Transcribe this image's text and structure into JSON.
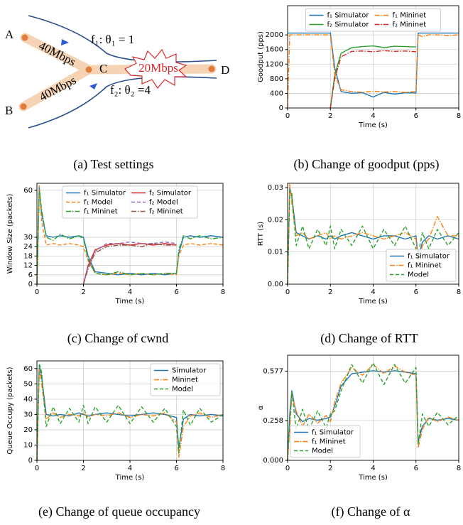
{
  "diagram": {
    "nodes": [
      "A",
      "B",
      "C",
      "D"
    ],
    "links": [
      "40Mbps",
      "40Mbps",
      "20Mbps"
    ],
    "flows": [
      "f₁: θ₁ = 1",
      "f₂: θ₂ =4"
    ]
  },
  "captions": [
    "(a) Test settings",
    "(b) Change of goodput (pps)",
    "(c) Change of cwnd",
    "(d) Change of RTT",
    "(e) Change of queue occupancy",
    "(f) Change of α"
  ],
  "chart_data": [
    {
      "type": "line",
      "xlabel": "Time (s)",
      "ylabel": "Goodput (pps)",
      "grid": true,
      "legend": "upper center",
      "legend_ncol": 2,
      "xlim": [
        0,
        8
      ],
      "xticks": [
        0,
        2,
        4,
        6,
        8
      ],
      "ylim": [
        0,
        2800
      ],
      "yticks": [
        0,
        400,
        800,
        1200,
        1600,
        2000
      ],
      "x": [
        0,
        0.1,
        0.2,
        0.4,
        0.7,
        1,
        1.4,
        1.8,
        2,
        2.2,
        2.5,
        3,
        3.5,
        4,
        4.5,
        5,
        5.5,
        6,
        6.1,
        6.3,
        6.6,
        7,
        7.5,
        8
      ],
      "series": [
        {
          "name": "f₁ Simulator",
          "color": "#1f77b4",
          "style": "solid",
          "values": [
            2050,
            2050,
            2050,
            2050,
            2050,
            2050,
            2050,
            2050,
            2050,
            1100,
            450,
            400,
            420,
            300,
            430,
            380,
            420,
            410,
            2050,
            2050,
            2050,
            2050,
            2050,
            2050
          ]
        },
        {
          "name": "f₂ Simulator",
          "color": "#2ca02c",
          "style": "solid",
          "values": [
            null,
            null,
            null,
            null,
            null,
            null,
            null,
            null,
            0,
            900,
            1500,
            1650,
            1680,
            1700,
            1650,
            1690,
            1680,
            1670,
            null,
            null,
            null,
            null,
            null,
            null
          ]
        },
        {
          "name": "f₁ Mininet",
          "color": "#ff7f0e",
          "style": "dashdot",
          "values": [
            0,
            2000,
            2000,
            2000,
            2000,
            2000,
            2000,
            2000,
            2000,
            900,
            500,
            450,
            430,
            460,
            440,
            450,
            430,
            450,
            2000,
            1950,
            2000,
            2000,
            1980,
            2000
          ]
        },
        {
          "name": "f₂ Mininet",
          "color": "#d62728",
          "style": "dashdot",
          "values": [
            null,
            null,
            null,
            null,
            null,
            null,
            null,
            null,
            0,
            800,
            1400,
            1550,
            1560,
            1540,
            1570,
            1550,
            1560,
            1540,
            null,
            null,
            null,
            null,
            null,
            null
          ]
        }
      ]
    },
    {
      "type": "line",
      "xlabel": "Time (s)",
      "ylabel": "Window Size (packets)",
      "grid": true,
      "legend": "upper center",
      "legend_ncol": 2,
      "xlim": [
        0,
        8
      ],
      "xticks": [
        0,
        2,
        4,
        6,
        8
      ],
      "ylim": [
        0,
        64.5
      ],
      "yticks": [
        0,
        6,
        12,
        18,
        24,
        30,
        60
      ],
      "x": [
        0,
        0.1,
        0.2,
        0.4,
        0.7,
        1,
        1.4,
        1.8,
        2,
        2.2,
        2.5,
        3,
        3.5,
        4,
        4.5,
        5,
        5.5,
        6,
        6.1,
        6.3,
        6.6,
        7,
        7.5,
        8
      ],
      "series": [
        {
          "name": "f₁ Simulator",
          "color": "#1f77b4",
          "style": "solid",
          "values": [
            0,
            62,
            45,
            31,
            30,
            31,
            30,
            31,
            30,
            18,
            8,
            7,
            6,
            7,
            6,
            7,
            6,
            7,
            20,
            30,
            31,
            30,
            31,
            30
          ]
        },
        {
          "name": "f₁ Model",
          "color": "#ff7f0e",
          "style": "dashed",
          "values": [
            0,
            63,
            40,
            25,
            26,
            25,
            26,
            25,
            24,
            15,
            7,
            6,
            7,
            6,
            7,
            6,
            7,
            6,
            18,
            25,
            26,
            25,
            26,
            25
          ]
        },
        {
          "name": "f₁ Mininet",
          "color": "#2ca02c",
          "style": "dashdot",
          "values": [
            0,
            60,
            48,
            30,
            28,
            32,
            29,
            31,
            29,
            16,
            7,
            6,
            8,
            6,
            7,
            6,
            7,
            7,
            22,
            31,
            29,
            31,
            29,
            30
          ]
        },
        {
          "name": "f₂ Simulator",
          "color": "#d62728",
          "style": "solid",
          "values": [
            null,
            null,
            null,
            null,
            null,
            null,
            null,
            null,
            0,
            12,
            22,
            25,
            26,
            25,
            26,
            25,
            26,
            25,
            null,
            null,
            null,
            null,
            null,
            null
          ]
        },
        {
          "name": "f₂ Model",
          "color": "#9467bd",
          "style": "dashed",
          "values": [
            null,
            null,
            null,
            null,
            null,
            null,
            null,
            null,
            0,
            11,
            21,
            26,
            26,
            27,
            26,
            26,
            27,
            26,
            null,
            null,
            null,
            null,
            null,
            null
          ]
        },
        {
          "name": "f₂ Mininet",
          "color": "#8c564b",
          "style": "dashdot",
          "values": [
            null,
            null,
            null,
            null,
            null,
            null,
            null,
            null,
            0,
            10,
            20,
            24,
            25,
            25,
            24,
            26,
            25,
            25,
            null,
            null,
            null,
            null,
            null,
            null
          ]
        }
      ]
    },
    {
      "type": "line",
      "xlabel": "Time (s)",
      "ylabel": "RTT (s)",
      "grid": true,
      "legend": "lower right",
      "legend_ncol": 1,
      "xlim": [
        0,
        8
      ],
      "xticks": [
        0,
        2,
        4,
        6,
        8
      ],
      "ylim": [
        0,
        0.0313
      ],
      "yticks": [
        {
          "value": 0,
          "label": "0.00"
        },
        0.01,
        0.02,
        0.03
      ],
      "x": [
        0,
        0.1,
        0.2,
        0.4,
        0.7,
        1,
        1.4,
        1.8,
        2,
        2.2,
        2.5,
        3,
        3.5,
        4,
        4.5,
        5,
        5.5,
        6,
        6.1,
        6.3,
        6.6,
        7,
        7.5,
        8
      ],
      "series": [
        {
          "name": "f₁ Simulator",
          "color": "#1f77b4",
          "style": "solid",
          "values": [
            0,
            0.03,
            0.027,
            0.016,
            0.015,
            0.014,
            0.015,
            0.014,
            0.015,
            0.014,
            0.015,
            0.016,
            0.015,
            0.014,
            0.015,
            0.015,
            0.014,
            0.015,
            0.008,
            0.013,
            0.015,
            0.014,
            0.015,
            0.014
          ]
        },
        {
          "name": "f₁ Mininet",
          "color": "#ff7f0e",
          "style": "dashdot",
          "values": [
            0,
            0.031,
            0.025,
            0.015,
            0.016,
            0.014,
            0.015,
            0.016,
            0.014,
            0.015,
            0.014,
            0.015,
            0.016,
            0.015,
            0.014,
            0.015,
            0.016,
            0.014,
            0.006,
            0.012,
            0.014,
            0.021,
            0.015,
            0.015
          ]
        },
        {
          "name": "Model",
          "color": "#2ca02c",
          "style": "dashed",
          "values": [
            0,
            0.029,
            0.028,
            0.012,
            0.018,
            0.011,
            0.017,
            0.012,
            0.018,
            0.011,
            0.017,
            0.012,
            0.018,
            0.011,
            0.017,
            0.012,
            0.018,
            0.011,
            0.009,
            0.016,
            0.011,
            0.017,
            0.012,
            0.016
          ]
        }
      ]
    },
    {
      "type": "line",
      "xlabel": "Time (s)",
      "ylabel": "Queue Occupy (packets)",
      "grid": true,
      "legend": "upper right",
      "legend_ncol": 1,
      "xlim": [
        0,
        8
      ],
      "xticks": [
        0,
        2,
        4,
        6,
        8
      ],
      "ylim": [
        0,
        65
      ],
      "yticks": [
        0,
        10,
        20,
        30,
        40,
        50,
        60
      ],
      "x": [
        0,
        0.1,
        0.2,
        0.4,
        0.7,
        1,
        1.4,
        1.8,
        2,
        2.2,
        2.5,
        3,
        3.5,
        4,
        4.5,
        5,
        5.5,
        6,
        6.1,
        6.3,
        6.6,
        7,
        7.5,
        8
      ],
      "series": [
        {
          "name": "Simulator",
          "color": "#1f77b4",
          "style": "solid",
          "values": [
            0,
            62,
            55,
            30,
            29,
            30,
            29,
            31,
            30,
            29,
            30,
            31,
            30,
            29,
            30,
            31,
            30,
            28,
            8,
            27,
            30,
            29,
            30,
            29
          ]
        },
        {
          "name": "Mininet",
          "color": "#ff7f0e",
          "style": "dashdot",
          "values": [
            0,
            60,
            50,
            27,
            31,
            28,
            30,
            29,
            31,
            28,
            30,
            29,
            31,
            28,
            30,
            29,
            31,
            25,
            2,
            22,
            29,
            31,
            28,
            30
          ]
        },
        {
          "name": "Model",
          "color": "#2ca02c",
          "style": "dashed",
          "values": [
            0,
            63,
            58,
            22,
            35,
            24,
            34,
            25,
            36,
            24,
            35,
            25,
            36,
            24,
            35,
            25,
            34,
            22,
            5,
            33,
            23,
            34,
            25,
            30
          ]
        }
      ]
    },
    {
      "type": "line",
      "xlabel": "Time (s)",
      "ylabel": "α",
      "grid": true,
      "legend": "lower left",
      "legend_ncol": 1,
      "xlim": [
        0,
        8
      ],
      "xticks": [
        0,
        2,
        4,
        6,
        8
      ],
      "ylim": [
        0,
        0.68
      ],
      "yticks": [
        {
          "value": 0,
          "label": "0.000"
        },
        0.258,
        0.577
      ],
      "x": [
        0,
        0.1,
        0.2,
        0.4,
        0.7,
        1,
        1.4,
        1.8,
        2,
        2.2,
        2.5,
        3,
        3.5,
        4,
        4.5,
        5,
        5.5,
        6,
        6.1,
        6.3,
        6.6,
        7,
        7.5,
        8
      ],
      "series": [
        {
          "name": "f₁ Simulator",
          "color": "#1f77b4",
          "style": "solid",
          "values": [
            0,
            0.3,
            0.45,
            0.3,
            0.25,
            0.27,
            0.26,
            0.27,
            0.28,
            0.35,
            0.48,
            0.56,
            0.57,
            0.58,
            0.57,
            0.58,
            0.57,
            0.56,
            0.12,
            0.22,
            0.27,
            0.26,
            0.27,
            0.26
          ]
        },
        {
          "name": "f₁ Mininet",
          "color": "#ff7f0e",
          "style": "dashdot",
          "values": [
            0,
            0.2,
            0.42,
            0.32,
            0.22,
            0.3,
            0.24,
            0.29,
            0.25,
            0.38,
            0.5,
            0.6,
            0.55,
            0.62,
            0.56,
            0.61,
            0.57,
            0.55,
            0.08,
            0.2,
            0.28,
            0.25,
            0.28,
            0.26
          ]
        },
        {
          "name": "Model",
          "color": "#2ca02c",
          "style": "dashed",
          "values": [
            0,
            0.25,
            0.44,
            0.2,
            0.33,
            0.2,
            0.32,
            0.21,
            0.3,
            0.32,
            0.45,
            0.62,
            0.5,
            0.63,
            0.49,
            0.62,
            0.5,
            0.6,
            0.1,
            0.3,
            0.22,
            0.31,
            0.23,
            0.29
          ]
        }
      ]
    }
  ]
}
